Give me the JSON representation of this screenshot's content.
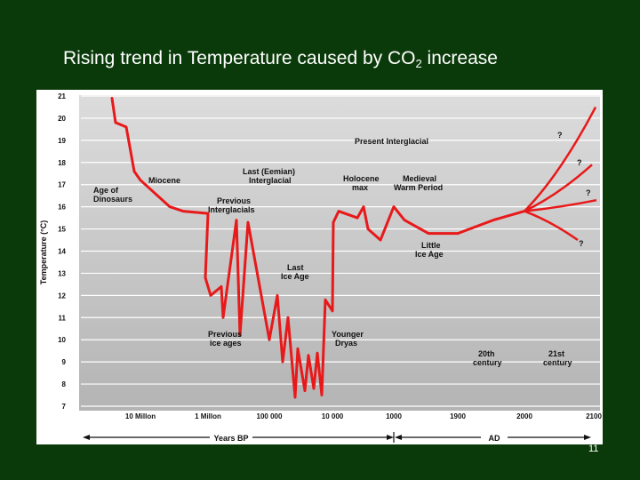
{
  "slide": {
    "title_main": "Rising trend in Temperature caused by CO",
    "title_sub": "2",
    "title_end": " increase",
    "page_number": "11"
  },
  "colors": {
    "background": "#0a3a0a",
    "curve": "#e8191a",
    "grid": "#ffffff"
  },
  "chart_data": {
    "type": "line",
    "ylabel": "Temperature (°C)",
    "ylim": [
      7,
      21
    ],
    "ytick_labels": [
      "21",
      "20",
      "19",
      "18",
      "17",
      "16",
      "15",
      "14",
      "13",
      "12",
      "11",
      "10",
      "9",
      "8",
      "7"
    ],
    "xtick_labels": [
      "10 Millon",
      "1 Millon",
      "100 000",
      "10 000",
      "1000",
      "1900",
      "2000",
      "2100"
    ],
    "x_axis_sections": [
      "Years BP",
      "AD"
    ],
    "annotations": [
      "Present Interglacial",
      "Age of Dinosaurs",
      "Miocene",
      "Last (Eemian) Interglacial",
      "Previous Interglacials",
      "Holocene max",
      "Medieval Warm Period",
      "Little Ice Age",
      "Last Ice Age",
      "Previous ice ages",
      "Younger Dryas",
      "20th century",
      "21st century"
    ],
    "scenario_marks": [
      "?",
      "?",
      "?",
      "?"
    ],
    "series": [
      {
        "values": [
          [
            "start",
            20.9
          ],
          [
            "",
            19.8
          ],
          [
            "",
            19.6
          ],
          [
            "",
            17.6
          ],
          [
            "10 Millon",
            17.2
          ],
          [
            "",
            16.0
          ],
          [
            "",
            15.8
          ],
          [
            "1 Millon",
            15.7
          ],
          [
            "",
            12.8
          ],
          [
            "",
            12.0
          ],
          [
            "",
            12.4
          ],
          [
            "",
            11.0
          ],
          [
            "",
            15.4
          ],
          [
            "",
            10.2
          ],
          [
            "",
            15.3
          ],
          [
            "100 000",
            10.0
          ],
          [
            "",
            12.0
          ],
          [
            "",
            9.0
          ],
          [
            "",
            11.0
          ],
          [
            "",
            7.4
          ],
          [
            "",
            9.6
          ],
          [
            "",
            7.7
          ],
          [
            "",
            9.3
          ],
          [
            "",
            7.8
          ],
          [
            "",
            9.4
          ],
          [
            "",
            7.5
          ],
          [
            "",
            11.8
          ],
          [
            "10 000",
            11.3
          ],
          [
            "",
            15.3
          ],
          [
            "",
            15.8
          ],
          [
            "",
            15.5
          ],
          [
            "",
            16.0
          ],
          [
            "",
            15.0
          ],
          [
            "",
            14.5
          ],
          [
            "1000",
            16.0
          ],
          [
            "",
            15.4
          ],
          [
            "",
            14.8
          ],
          [
            "1900",
            14.8
          ],
          [
            "",
            15.4
          ],
          [
            "2000",
            15.8
          ]
        ]
      }
    ],
    "scenarios": [
      {
        "values": [
          [
            "2000",
            15.8
          ],
          [
            "2100",
            20.5
          ]
        ]
      },
      {
        "values": [
          [
            "2000",
            15.8
          ],
          [
            "2100",
            17.9
          ]
        ]
      },
      {
        "values": [
          [
            "2000",
            15.8
          ],
          [
            "2100",
            16.3
          ]
        ]
      },
      {
        "values": [
          [
            "2000",
            15.8
          ],
          [
            "2100",
            14.5
          ]
        ]
      }
    ]
  }
}
